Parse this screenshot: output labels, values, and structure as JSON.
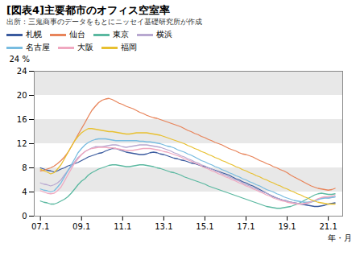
{
  "chart_data": {
    "type": "line",
    "title": "[図表4]主要都市のオフィス空室率",
    "subtitle": "出所：三鬼商事のデータをもとにニッセイ基礎研究所が作成",
    "ylabel": "24 %",
    "xlabel": "年・月",
    "xlim": [
      2006.7,
      2021.7
    ],
    "xticks": [
      {
        "value": 2007.0,
        "label": "07.1"
      },
      {
        "value": 2009.0,
        "label": "09.1"
      },
      {
        "value": 2011.0,
        "label": "11.1"
      },
      {
        "value": 2013.0,
        "label": "13.1"
      },
      {
        "value": 2015.0,
        "label": "15.1"
      },
      {
        "value": 2017.0,
        "label": "17.1"
      },
      {
        "value": 2019.0,
        "label": "19.1"
      },
      {
        "value": 2021.0,
        "label": "21.1"
      }
    ],
    "ylim": [
      0,
      24
    ],
    "yticks": [
      0,
      4,
      8,
      12,
      16,
      20,
      24
    ],
    "x": [
      2007.0,
      2007.17,
      2007.33,
      2007.5,
      2007.67,
      2007.83,
      2008.0,
      2008.17,
      2008.33,
      2008.5,
      2008.67,
      2008.83,
      2009.0,
      2009.17,
      2009.33,
      2009.5,
      2009.67,
      2009.83,
      2010.0,
      2010.17,
      2010.33,
      2010.5,
      2010.67,
      2010.83,
      2011.0,
      2011.17,
      2011.33,
      2011.5,
      2011.67,
      2011.83,
      2012.0,
      2012.17,
      2012.33,
      2012.5,
      2012.67,
      2012.83,
      2013.0,
      2013.17,
      2013.33,
      2013.5,
      2013.67,
      2013.83,
      2014.0,
      2014.17,
      2014.33,
      2014.5,
      2014.67,
      2014.83,
      2015.0,
      2015.17,
      2015.33,
      2015.5,
      2015.67,
      2015.83,
      2016.0,
      2016.17,
      2016.33,
      2016.5,
      2016.67,
      2016.83,
      2017.0,
      2017.17,
      2017.33,
      2017.5,
      2017.67,
      2017.83,
      2018.0,
      2018.17,
      2018.33,
      2018.5,
      2018.67,
      2018.83,
      2019.0,
      2019.17,
      2019.33,
      2019.5,
      2019.67,
      2019.83,
      2020.0,
      2020.17,
      2020.33,
      2020.5,
      2020.67,
      2020.83,
      2021.0,
      2021.17,
      2021.33
    ],
    "series": [
      {
        "name": "札幌",
        "color": "#3a5a9e",
        "values": [
          8.0,
          7.8,
          7.6,
          7.5,
          7.3,
          7.5,
          7.8,
          8.0,
          8.3,
          8.5,
          8.7,
          8.9,
          9.2,
          9.5,
          9.8,
          10.0,
          10.2,
          10.4,
          10.5,
          10.8,
          11.0,
          11.2,
          11.2,
          11.0,
          10.8,
          10.6,
          10.5,
          10.4,
          10.3,
          10.2,
          10.2,
          10.3,
          10.5,
          10.6,
          10.5,
          10.3,
          10.2,
          10.0,
          9.8,
          9.6,
          9.5,
          9.3,
          9.2,
          9.0,
          8.8,
          8.7,
          8.5,
          8.3,
          8.2,
          8.0,
          7.8,
          7.6,
          7.4,
          7.2,
          7.0,
          6.8,
          6.5,
          6.2,
          6.0,
          5.7,
          5.5,
          5.2,
          5.0,
          4.7,
          4.4,
          4.1,
          3.8,
          3.5,
          3.2,
          3.0,
          2.8,
          2.6,
          2.5,
          2.3,
          2.2,
          2.1,
          2.0,
          1.9,
          1.8,
          1.7,
          1.6,
          1.6,
          1.7,
          1.8,
          2.0,
          2.1,
          2.2
        ]
      },
      {
        "name": "仙台",
        "color": "#e8845a",
        "values": [
          7.5,
          7.6,
          7.8,
          8.0,
          8.3,
          8.7,
          9.2,
          9.8,
          10.5,
          11.5,
          12.5,
          13.5,
          14.5,
          15.5,
          16.5,
          17.5,
          18.2,
          18.8,
          19.2,
          19.4,
          19.5,
          19.3,
          19.0,
          18.7,
          18.5,
          18.2,
          18.0,
          17.8,
          17.5,
          17.2,
          17.0,
          16.7,
          16.5,
          16.3,
          16.2,
          16.0,
          15.8,
          15.6,
          15.4,
          15.2,
          15.0,
          14.8,
          14.5,
          14.2,
          14.0,
          13.7,
          13.5,
          13.2,
          13.0,
          12.7,
          12.5,
          12.2,
          12.0,
          11.8,
          11.5,
          11.2,
          11.0,
          10.8,
          10.5,
          10.3,
          10.2,
          10.0,
          9.8,
          9.5,
          9.2,
          9.0,
          8.7,
          8.5,
          8.2,
          8.0,
          7.7,
          7.5,
          7.2,
          6.8,
          6.5,
          6.2,
          5.9,
          5.6,
          5.3,
          5.0,
          4.8,
          4.6,
          4.5,
          4.4,
          4.3,
          4.4,
          4.6
        ]
      },
      {
        "name": "東京",
        "color": "#5ab8a0",
        "values": [
          2.5,
          2.3,
          2.2,
          2.0,
          2.0,
          2.2,
          2.5,
          2.8,
          3.2,
          3.8,
          4.5,
          5.2,
          5.8,
          6.2,
          6.8,
          7.2,
          7.5,
          7.8,
          8.0,
          8.2,
          8.4,
          8.5,
          8.5,
          8.4,
          8.3,
          8.2,
          8.2,
          8.3,
          8.4,
          8.5,
          8.5,
          8.4,
          8.3,
          8.2,
          8.0,
          7.9,
          7.7,
          7.5,
          7.3,
          7.2,
          7.0,
          6.8,
          6.5,
          6.3,
          6.1,
          5.9,
          5.7,
          5.5,
          5.3,
          5.0,
          4.8,
          4.6,
          4.4,
          4.2,
          4.0,
          3.8,
          3.6,
          3.4,
          3.2,
          3.0,
          2.8,
          2.6,
          2.4,
          2.2,
          2.0,
          1.8,
          1.6,
          1.5,
          1.4,
          1.3,
          1.3,
          1.4,
          1.5,
          1.6,
          1.8,
          2.0,
          2.3,
          2.6,
          2.9,
          3.2,
          3.5,
          3.7,
          3.8,
          3.7,
          3.6,
          3.6,
          3.7
        ]
      },
      {
        "name": "横浜",
        "color": "#b8a8d0",
        "values": [
          5.5,
          5.3,
          5.2,
          5.0,
          5.2,
          5.5,
          6.0,
          6.8,
          7.5,
          8.2,
          9.0,
          9.7,
          10.2,
          10.7,
          11.0,
          11.3,
          11.5,
          11.5,
          11.5,
          11.6,
          11.7,
          11.8,
          11.8,
          11.7,
          11.5,
          11.4,
          11.5,
          11.6,
          11.7,
          11.8,
          11.8,
          11.8,
          11.7,
          11.6,
          11.5,
          11.4,
          11.2,
          11.0,
          10.8,
          10.5,
          10.3,
          10.0,
          9.8,
          9.5,
          9.3,
          9.0,
          8.8,
          8.5,
          8.3,
          8.0,
          7.8,
          7.5,
          7.3,
          7.0,
          6.8,
          6.5,
          6.3,
          6.0,
          5.8,
          5.5,
          5.2,
          5.0,
          4.7,
          4.5,
          4.2,
          4.0,
          3.8,
          3.5,
          3.3,
          3.0,
          2.8,
          2.6,
          2.5,
          2.3,
          2.2,
          2.1,
          2.0,
          2.0,
          2.1,
          2.3,
          2.5,
          2.8,
          3.0,
          3.1,
          3.0,
          3.1,
          3.2
        ]
      },
      {
        "name": "名古屋",
        "color": "#78bce0",
        "values": [
          4.5,
          4.3,
          4.2,
          4.0,
          4.2,
          4.8,
          5.5,
          6.5,
          7.5,
          8.5,
          9.5,
          10.5,
          11.2,
          11.8,
          12.2,
          12.5,
          12.7,
          12.8,
          12.8,
          12.8,
          12.7,
          12.6,
          12.5,
          12.5,
          12.5,
          12.5,
          12.5,
          12.5,
          12.5,
          12.4,
          12.4,
          12.3,
          12.3,
          12.2,
          12.1,
          12.0,
          11.8,
          11.6,
          11.5,
          11.3,
          11.0,
          10.8,
          10.6,
          10.3,
          10.1,
          9.8,
          9.5,
          9.2,
          9.0,
          8.7,
          8.5,
          8.2,
          8.0,
          7.7,
          7.5,
          7.2,
          7.0,
          6.7,
          6.5,
          6.2,
          6.0,
          5.7,
          5.5,
          5.2,
          5.0,
          4.7,
          4.4,
          4.2,
          4.0,
          3.7,
          3.5,
          3.2,
          3.0,
          2.8,
          2.6,
          2.5,
          2.4,
          2.3,
          2.3,
          2.4,
          2.5,
          2.7,
          2.9,
          3.0,
          3.0,
          3.1,
          3.2
        ]
      },
      {
        "name": "大阪",
        "color": "#f0a8c0",
        "values": [
          4.2,
          4.0,
          3.8,
          3.7,
          3.8,
          4.2,
          4.8,
          5.8,
          6.8,
          7.8,
          8.8,
          9.5,
          10.2,
          10.7,
          11.0,
          11.2,
          11.3,
          11.4,
          11.4,
          11.4,
          11.3,
          11.3,
          11.2,
          11.1,
          11.0,
          10.9,
          10.9,
          10.9,
          11.0,
          11.1,
          11.2,
          11.2,
          11.2,
          11.1,
          11.0,
          10.9,
          10.7,
          10.6,
          10.4,
          10.2,
          10.0,
          9.8,
          9.5,
          9.3,
          9.1,
          8.8,
          8.6,
          8.3,
          8.0,
          7.8,
          7.5,
          7.3,
          7.0,
          6.8,
          6.5,
          6.3,
          6.0,
          5.8,
          5.5,
          5.3,
          5.0,
          4.8,
          4.5,
          4.3,
          4.0,
          3.8,
          3.5,
          3.3,
          3.0,
          2.8,
          2.6,
          2.5,
          2.3,
          2.2,
          2.1,
          2.0,
          2.0,
          2.1,
          2.2,
          2.4,
          2.6,
          2.9,
          3.1,
          3.2,
          3.2,
          3.3,
          3.5
        ]
      },
      {
        "name": "福岡",
        "color": "#e8c030",
        "values": [
          7.8,
          7.5,
          7.3,
          7.0,
          7.2,
          7.8,
          8.5,
          9.5,
          10.5,
          11.5,
          12.5,
          13.2,
          13.8,
          14.2,
          14.5,
          14.5,
          14.4,
          14.3,
          14.2,
          14.1,
          14.0,
          14.0,
          13.9,
          13.8,
          13.7,
          13.6,
          13.6,
          13.7,
          13.8,
          13.8,
          13.8,
          13.8,
          13.7,
          13.6,
          13.5,
          13.4,
          13.2,
          13.0,
          12.8,
          12.6,
          12.4,
          12.2,
          12.0,
          11.7,
          11.5,
          11.2,
          11.0,
          10.7,
          10.5,
          10.2,
          10.0,
          9.7,
          9.5,
          9.2,
          9.0,
          8.7,
          8.5,
          8.2,
          8.0,
          7.7,
          7.5,
          7.2,
          7.0,
          6.7,
          6.5,
          6.2,
          6.0,
          5.7,
          5.5,
          5.2,
          5.0,
          4.7,
          4.5,
          4.2,
          4.0,
          3.7,
          3.5,
          3.2,
          3.0,
          2.7,
          2.5,
          2.3,
          2.2,
          2.1,
          2.0,
          2.0,
          2.0
        ]
      }
    ]
  }
}
